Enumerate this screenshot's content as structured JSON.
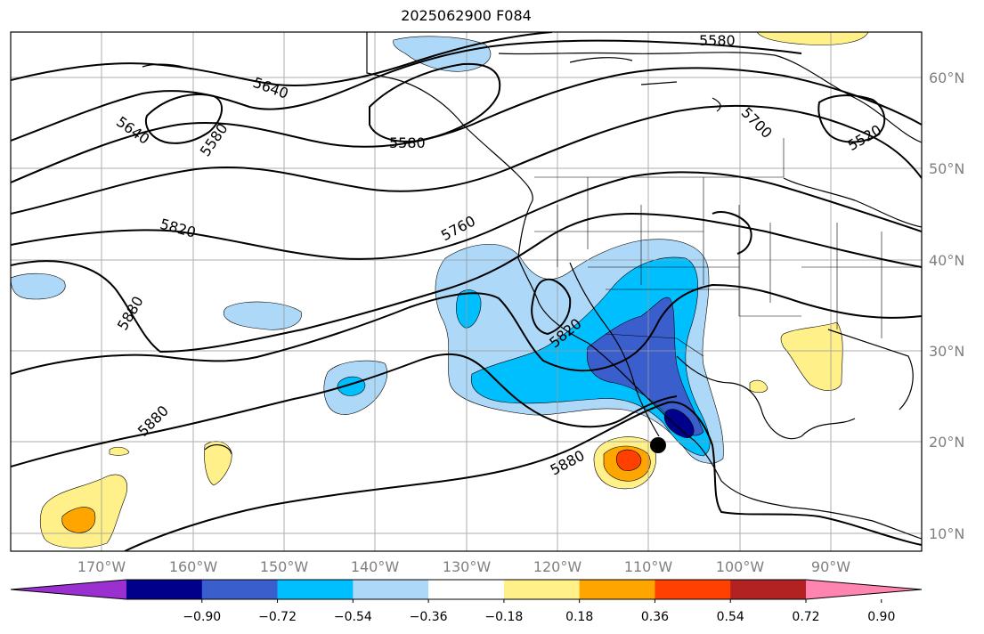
{
  "title": "2025062900 F084",
  "map": {
    "projection": "PlateCarree",
    "lon_range": [
      -180,
      -80
    ],
    "lat_range": [
      8,
      65
    ],
    "lat_ticks": [
      "60°N",
      "50°N",
      "40°N",
      "30°N",
      "20°N",
      "10°N"
    ],
    "lon_ticks": [
      "170°W",
      "160°W",
      "150°W",
      "140°W",
      "130°W",
      "120°W",
      "110°W",
      "100°W",
      "90°W"
    ],
    "contour_labels": [
      "5580",
      "5640",
      "5580",
      "5640",
      "5580",
      "5700",
      "5520",
      "5760",
      "5820",
      "5820",
      "5880",
      "5880",
      "5880"
    ],
    "marker": "storm-center-dot"
  },
  "colorbar": {
    "ticks": [
      "−0.90",
      "−0.72",
      "−0.54",
      "−0.36",
      "−0.18",
      "0.18",
      "0.36",
      "0.54",
      "0.72",
      "0.90"
    ],
    "colors": [
      "#9b30d0",
      "#00008b",
      "#3a5fcd",
      "#00bfff",
      "#add8f7",
      "#ffffff",
      "#fff08a",
      "#ffa500",
      "#ff4000",
      "#b22222",
      "#ff85b0"
    ]
  }
}
